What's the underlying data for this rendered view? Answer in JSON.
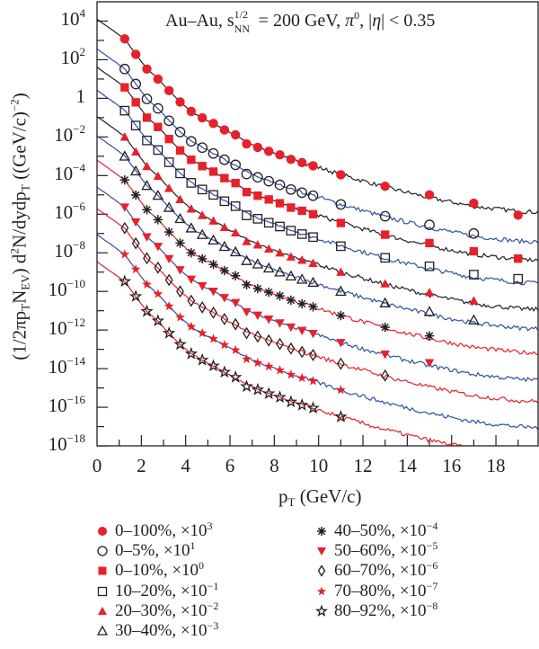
{
  "chart_data": {
    "type": "scatter",
    "title": "",
    "annotation": {
      "prefix": "Au–Au, s",
      "sup": "1/2",
      "sub": "NN",
      "mid": " = 200 GeV, ",
      "pi": "π",
      "pi_sup": "0",
      "tail_a": ", |",
      "eta": "η",
      "tail_b": "| < 0.35"
    },
    "xlabel": {
      "main": "p",
      "sub": "T",
      "unit": " (GeV/c)"
    },
    "ylabel": {
      "a": "(1/2π",
      "p": "p",
      "p_sub": "T",
      "n": "N",
      "n_sub": "EV",
      "b": ") d",
      "sq": "2",
      "c": "N/dydp",
      "c_sub": "T",
      "d": " ((GeV/c)",
      "e": "−2",
      "f": ")"
    },
    "xlim": [
      0,
      20
    ],
    "ylim": [
      1e-18,
      100000.0
    ],
    "yscale": "log",
    "grid": false,
    "legend_position": "below",
    "xticks": [
      "0",
      "2",
      "4",
      "6",
      "8",
      "10",
      "12",
      "14",
      "16",
      "18"
    ],
    "yticks": [
      {
        "base": "10",
        "exp": "4"
      },
      {
        "base": "10",
        "exp": "2"
      },
      {
        "base": "1",
        "exp": ""
      },
      {
        "base": "10",
        "exp": "−2"
      },
      {
        "base": "10",
        "exp": "−4"
      },
      {
        "base": "10",
        "exp": "−6"
      },
      {
        "base": "10",
        "exp": "−8"
      },
      {
        "base": "10",
        "exp": "−10"
      },
      {
        "base": "10",
        "exp": "−12"
      },
      {
        "base": "10",
        "exp": "−14"
      },
      {
        "base": "10",
        "exp": "−16"
      },
      {
        "base": "10",
        "exp": "−18"
      }
    ],
    "x": [
      1.25,
      1.75,
      2.25,
      2.75,
      3.25,
      3.75,
      4.25,
      4.75,
      5.25,
      5.75,
      6.25,
      6.75,
      7.25,
      7.75,
      8.25,
      8.75,
      9.25,
      9.75,
      11,
      13,
      15,
      17,
      19
    ],
    "colors": {
      "red": "#e8202a",
      "black": "#231f20",
      "blue": "#2e4fa8"
    },
    "series": [
      {
        "name": "0–100%, ×10",
        "exp": "3",
        "marker": "circle-filled",
        "color": "#e8202a",
        "line_color": "#231f20",
        "values": [
          1200.0,
          190.0,
          33.0,
          10.0,
          2.5,
          0.65,
          0.21,
          0.098,
          0.05,
          0.023,
          0.013,
          0.0044,
          0.0029,
          0.0018,
          0.0012,
          0.00069,
          0.00047,
          0.00032,
          0.00011,
          2.8e-05,
          1e-05,
          3.7e-06,
          8.9e-07
        ]
      },
      {
        "name": "0–5%, ×10",
        "exp": "1",
        "marker": "circle-open",
        "color": "#231f20",
        "line_color": "#2e4fa8",
        "values": [
          33.0,
          5.5,
          0.93,
          0.3,
          0.069,
          0.018,
          0.0059,
          0.0028,
          0.0014,
          0.00066,
          0.00036,
          0.00012,
          8.1e-05,
          5.1e-05,
          3.3e-05,
          1.9e-05,
          1.3e-05,
          9.1e-06,
          3.2e-06,
          7.8e-07,
          2.8e-07,
          1e-07
        ]
      },
      {
        "name": "0–10%, ×10",
        "exp": "0",
        "marker": "square-filled",
        "color": "#e8202a",
        "line_color": "#231f20",
        "values": [
          3.7,
          0.62,
          0.1,
          0.033,
          0.0078,
          0.002,
          0.00066,
          0.00031,
          0.00016,
          7.4e-05,
          4.1e-05,
          1.4e-05,
          9.1e-06,
          5.8e-06,
          3.7e-06,
          2.2e-06,
          1.5e-06,
          1e-06,
          3.5e-07,
          8.7e-08,
          3.2e-08,
          1.2e-08,
          5e-09
        ]
      },
      {
        "name": "10–20%, ×10",
        "exp": "−1",
        "marker": "square-open",
        "color": "#231f20",
        "line_color": "#2e4fa8",
        "values": [
          0.23,
          0.039,
          0.0066,
          0.0021,
          0.00049,
          0.00013,
          4.2e-05,
          1.9e-05,
          1e-05,
          4.7e-06,
          2.6e-06,
          8.7e-07,
          5.8e-07,
          3.6e-07,
          2.3e-07,
          1.4e-07,
          9.3e-08,
          6.5e-08,
          2.2e-08,
          5.5e-09,
          2e-09,
          7.4e-10,
          4.5e-10
        ]
      },
      {
        "name": "20–30%, ×10",
        "exp": "−2",
        "marker": "triangle-filled",
        "color": "#e8202a",
        "line_color": "#231f20",
        "values": [
          0.01,
          0.0017,
          0.0003,
          9.3e-05,
          2.2e-05,
          5.8e-06,
          1.9e-06,
          8.7e-07,
          4.5e-07,
          2.1e-07,
          1.1e-07,
          3.9e-08,
          2.6e-08,
          1.6e-08,
          1e-08,
          6.2e-09,
          4.2e-09,
          2.9e-09,
          1e-09,
          2.5e-10,
          8.9e-11,
          3.3e-11
        ]
      },
      {
        "name": "30–40%, ×10",
        "exp": "−3",
        "marker": "triangle-open",
        "color": "#231f20",
        "line_color": "#2e4fa8",
        "values": [
          0.001,
          0.00017,
          3e-05,
          9.3e-06,
          2.2e-06,
          5.8e-07,
          1.9e-07,
          8.7e-08,
          4.5e-08,
          2.1e-08,
          1.1e-08,
          3.9e-09,
          2.6e-09,
          1.6e-09,
          1e-09,
          6.2e-10,
          4.2e-10,
          2.9e-10,
          1e-10,
          2.5e-11,
          8.9e-12,
          3.3e-12
        ]
      },
      {
        "name": "40–50%, ×10",
        "exp": "−4",
        "marker": "asterisk",
        "color": "#231f20",
        "line_color": "#e8202a",
        "values": [
          5.9e-05,
          9.8e-06,
          1.7e-06,
          5.2e-07,
          1.2e-07,
          3.2e-08,
          1e-08,
          4.9e-09,
          2.5e-09,
          1.2e-09,
          6.5e-10,
          2.2e-10,
          1.4e-10,
          9.1e-11,
          5.9e-11,
          3.5e-11,
          2.3e-11,
          1.6e-11,
          5.6e-12,
          1.4e-12,
          5e-13
        ]
      },
      {
        "name": "50–60%, ×10",
        "exp": "−5",
        "marker": "triangle-down-filled",
        "color": "#e8202a",
        "line_color": "#2e4fa8",
        "values": [
          2.3e-06,
          3.9e-07,
          6.6e-08,
          2.1e-08,
          4.9e-09,
          1.3e-09,
          4.2e-10,
          1.9e-10,
          1e-10,
          4.7e-11,
          2.6e-11,
          8.7e-12,
          5.8e-12,
          3.6e-12,
          2.3e-12,
          1.4e-12,
          9.3e-13,
          6.5e-13,
          2.2e-13,
          5.5e-14,
          2e-14
        ]
      },
      {
        "name": "60–70%, ×10",
        "exp": "−6",
        "marker": "diamond-open",
        "color": "#231f20",
        "line_color": "#e8202a",
        "values": [
          1.9e-07,
          3.1e-08,
          5.2e-09,
          1.7e-09,
          3.9e-10,
          1e-10,
          3.3e-11,
          1.5e-11,
          7.9e-12,
          3.7e-12,
          2e-12,
          6.9e-13,
          4.6e-13,
          2.9e-13,
          1.9e-13,
          1.1e-13,
          7.4e-14,
          5.1e-14,
          1.8e-14,
          4.4e-15
        ]
      },
      {
        "name": "70–80%, ×10",
        "exp": "−7",
        "marker": "star-filled",
        "color": "#e8202a",
        "line_color": "#2e4fa8",
        "values": [
          8.3e-09,
          1.4e-09,
          2.3e-10,
          7.4e-11,
          1.7e-11,
          4.6e-12,
          1.5e-12,
          6.9e-13,
          3.5e-13,
          1.7e-13,
          9.1e-14,
          3.1e-14,
          2e-14,
          1.3e-14,
          8.3e-15,
          4.9e-15,
          3.3e-15,
          2.3e-15,
          7.9e-16
        ]
      },
      {
        "name": "80–92%, ×10",
        "exp": "−8",
        "marker": "star-open",
        "color": "#231f20",
        "line_color": "#e8202a",
        "values": [
          3.3e-10,
          5.5e-11,
          9.3e-12,
          3e-12,
          6.9e-13,
          1.8e-13,
          5.9e-14,
          2.8e-14,
          1.4e-14,
          6.6e-15,
          3.6e-15,
          1.2e-15,
          8.1e-16,
          5.1e-16,
          3.3e-16,
          1.9e-16,
          1.3e-16,
          9.1e-17,
          3.2e-17
        ]
      }
    ]
  }
}
